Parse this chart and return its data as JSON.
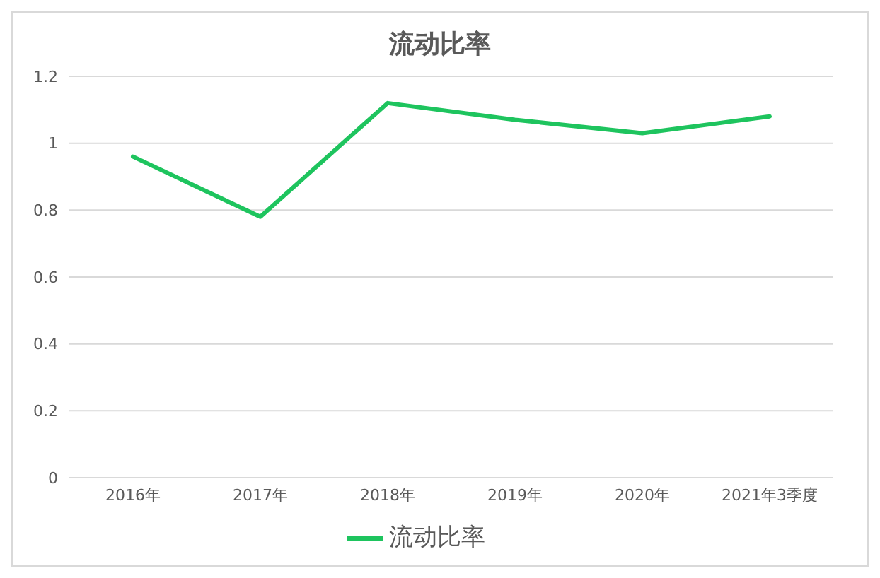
{
  "chart_data": {
    "type": "line",
    "title": "流动比率",
    "categories": [
      "2016年",
      "2017年",
      "2018年",
      "2019年",
      "2020年",
      "2021年3季度"
    ],
    "series": [
      {
        "name": "流动比率",
        "color": "#1ec45e",
        "values": [
          0.96,
          0.78,
          1.12,
          1.07,
          1.03,
          1.08
        ]
      }
    ],
    "ylim": [
      0,
      1.2
    ],
    "yticks": [
      0,
      0.2,
      0.4,
      0.6,
      0.8,
      1,
      1.2
    ],
    "grid": "y",
    "legend": "bottom",
    "marker": "none",
    "line_style": "solid"
  }
}
